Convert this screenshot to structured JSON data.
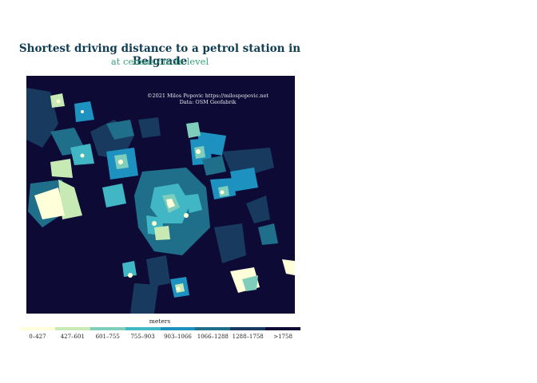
{
  "header": {
    "title": "Shortest driving distance to a petrol station in Belgrade",
    "subtitle": "at census circle level"
  },
  "credit": {
    "line1": "©2021 Milos Popovic https://milospopovic.net",
    "line2": "Data: OSM Geofabrik"
  },
  "legend": {
    "title": "meters",
    "classes": [
      {
        "label": "0–427",
        "color": "#ffffd9"
      },
      {
        "label": "427–601",
        "color": "#c7e9b4"
      },
      {
        "label": "601–755",
        "color": "#7fcdbb"
      },
      {
        "label": "755–903",
        "color": "#41b6c4"
      },
      {
        "label": "903–1066",
        "color": "#1d91c0"
      },
      {
        "label": "1066–1288",
        "color": "#1f6f8b"
      },
      {
        "label": "1288–1758",
        "color": "#173a5e"
      },
      {
        "label": ">1758",
        "color": "#0d0a35"
      }
    ]
  },
  "map": {
    "background_color": "#0d0a35"
  }
}
